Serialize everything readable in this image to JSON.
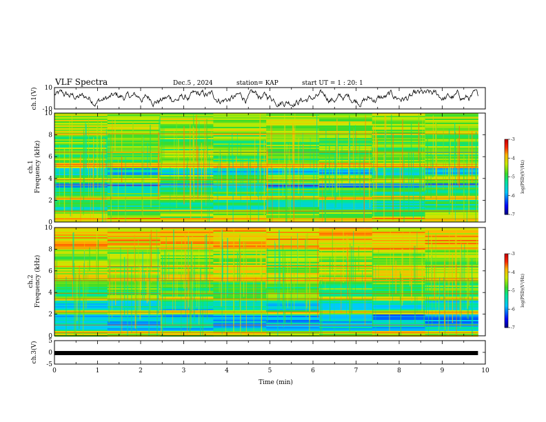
{
  "header": {
    "title": "VLF Spectra",
    "date": "Dec.5 , 2024",
    "station": "station= KAP",
    "start_ut": "start UT =  1 : 20: 1"
  },
  "chart_data": [
    {
      "type": "line",
      "panel": "ch1-waveform",
      "ylabel": "ch.1(V)",
      "ylim": [
        -10,
        10
      ],
      "yticks": [
        10,
        -10
      ],
      "x_range_min": [
        0,
        9.83
      ],
      "description_values": "noisy waveform oscillating roughly between -8 and 8 V",
      "xlim": [
        0,
        10
      ]
    },
    {
      "type": "heatmap",
      "panel": "ch1-spectrogram",
      "ylabel": "ch.1\nFrequency (kHz)",
      "ylabel_lines": [
        "ch.1",
        "Frequency (kHz)"
      ],
      "ylim": [
        0,
        10
      ],
      "yticks": [
        0,
        2,
        4,
        6,
        8,
        10
      ],
      "xlim": [
        0,
        10
      ],
      "data_extent_min": [
        0,
        9.83
      ],
      "colorbar": {
        "label": "log(PSD)(V²/Hz)",
        "range": [
          -7,
          -3
        ],
        "ticks": [
          -3,
          -4,
          -5,
          -6,
          -7
        ]
      },
      "bands_khz": [
        {
          "f0": 0.0,
          "f1": 0.4,
          "level": -4.0
        },
        {
          "f0": 0.4,
          "f1": 1.2,
          "level": -4.6
        },
        {
          "f0": 1.2,
          "f1": 2.0,
          "level": -5.2
        },
        {
          "f0": 2.0,
          "f1": 2.4,
          "level": -4.2
        },
        {
          "f0": 2.4,
          "f1": 3.2,
          "level": -5.0
        },
        {
          "f0": 3.2,
          "f1": 3.6,
          "level": -5.9
        },
        {
          "f0": 3.6,
          "f1": 4.3,
          "level": -4.6
        },
        {
          "f0": 4.3,
          "f1": 5.0,
          "level": -5.6
        },
        {
          "f0": 5.0,
          "f1": 5.4,
          "level": -4.1
        },
        {
          "f0": 5.4,
          "f1": 8.0,
          "level": -4.7
        },
        {
          "f0": 8.0,
          "f1": 10.0,
          "level": -4.4
        }
      ]
    },
    {
      "type": "heatmap",
      "panel": "ch2-spectrogram",
      "ylabel": "ch.2\nFrequency (kHz)",
      "ylabel_lines": [
        "ch.2",
        "Frequency (kHz)"
      ],
      "ylim": [
        0,
        10
      ],
      "yticks": [
        0,
        2,
        4,
        6,
        8,
        10
      ],
      "xlim": [
        0,
        10
      ],
      "data_extent_min": [
        0,
        9.83
      ],
      "colorbar": {
        "label": "log(PSD)(V²/Hz)",
        "range": [
          -7,
          -3
        ],
        "ticks": [
          -3,
          -4,
          -5,
          -6,
          -7
        ]
      },
      "bands_khz": [
        {
          "f0": 0.0,
          "f1": 0.4,
          "level": -4.3
        },
        {
          "f0": 0.4,
          "f1": 1.2,
          "level": -5.6
        },
        {
          "f0": 1.2,
          "f1": 2.0,
          "level": -5.8
        },
        {
          "f0": 2.0,
          "f1": 2.4,
          "level": -4.4
        },
        {
          "f0": 2.4,
          "f1": 3.2,
          "level": -5.5
        },
        {
          "f0": 3.2,
          "f1": 3.6,
          "level": -4.5
        },
        {
          "f0": 3.6,
          "f1": 5.0,
          "level": -4.8
        },
        {
          "f0": 5.0,
          "f1": 6.0,
          "level": -4.3
        },
        {
          "f0": 6.0,
          "f1": 8.0,
          "level": -4.5
        },
        {
          "f0": 8.0,
          "f1": 10.0,
          "level": -4.0
        }
      ]
    },
    {
      "type": "line",
      "panel": "ch3-signal",
      "ylabel": "ch.3(V)",
      "ylim": [
        -5,
        5
      ],
      "yticks": [
        5,
        0,
        -5
      ],
      "xlim": [
        0,
        10
      ],
      "data_extent_min": [
        0,
        9.83
      ],
      "value_v": -0.3,
      "xlabel": "Time (min)",
      "xticks": [
        0,
        1,
        2,
        3,
        4,
        5,
        6,
        7,
        8,
        9,
        10
      ]
    }
  ]
}
